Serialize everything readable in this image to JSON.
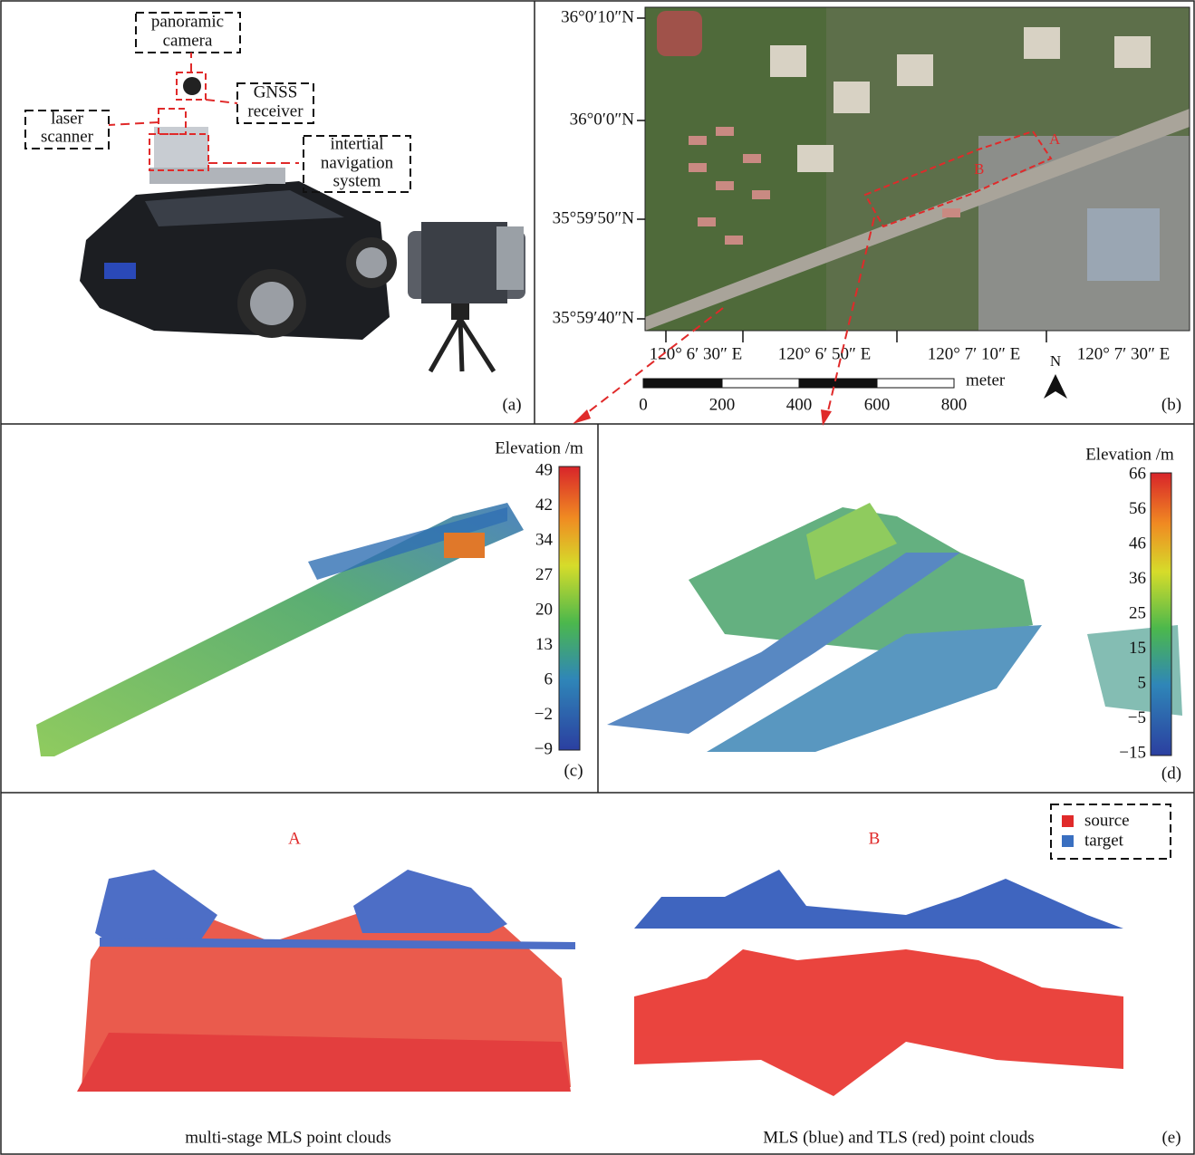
{
  "panel_a": {
    "labels": {
      "camera": [
        "panoramic",
        "camera"
      ],
      "gnss": [
        "GNSS",
        "receiver"
      ],
      "laser": [
        "laser",
        "scanner"
      ],
      "ins": [
        "intertial",
        "navigation",
        "system"
      ]
    },
    "tag": "(a)"
  },
  "panel_b": {
    "lat_labels": [
      "36°0′10″N",
      "36°0′0″N",
      "35°59′50″N",
      "35°59′40″N"
    ],
    "lon_labels": [
      "120° 6′ 30″ E",
      "120° 6′ 50″ E",
      "120° 7′ 10″ E",
      "120° 7′ 30″ E"
    ],
    "map_marks": [
      "A",
      "B"
    ],
    "scale_labels": [
      "0",
      "200",
      "400",
      "600",
      "800"
    ],
    "scale_unit": "meter",
    "north": "N",
    "tag": "(b)"
  },
  "panel_c": {
    "colorbar_title": "Elevation /m",
    "colorbar_ticks": [
      "49",
      "42",
      "34",
      "27",
      "20",
      "13",
      "6",
      "−2",
      "−9"
    ],
    "tag": "(c)"
  },
  "panel_d": {
    "colorbar_title": "Elevation /m",
    "colorbar_ticks": [
      "66",
      "56",
      "46",
      "36",
      "25",
      "15",
      "5",
      "−5",
      "−15"
    ],
    "tag": "(d)"
  },
  "panel_e": {
    "titles": [
      "A",
      "B"
    ],
    "legend": [
      "source",
      "target"
    ],
    "captions": [
      "multi-stage MLS point clouds",
      "MLS (blue) and TLS (red) point clouds"
    ],
    "tag": "(e)"
  }
}
